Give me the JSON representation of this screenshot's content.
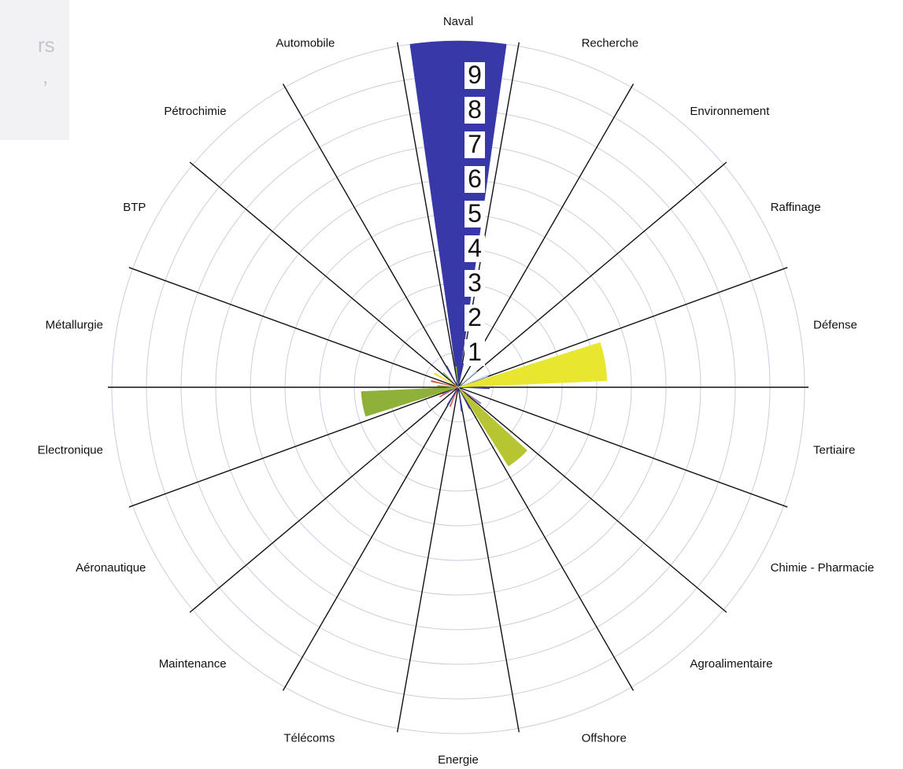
{
  "chart_data": {
    "type": "polar-bar",
    "title": "",
    "categories": [
      "Naval",
      "Recherche",
      "Environnement",
      "Raffinage",
      "Défense",
      "Tertiaire",
      "Chimie - Pharmacie",
      "Agroalimentaire",
      "Offshore",
      "Energie",
      "Télécoms",
      "Maintenance",
      "Aéronautique",
      "Electronique",
      "Métallurgie",
      "BTP",
      "Pétrochimie",
      "Automobile"
    ],
    "rings": [
      1,
      2,
      3,
      4,
      5,
      6,
      7,
      8,
      9,
      10
    ],
    "tick_labels": [
      "1",
      "2",
      "3",
      "4",
      "5",
      "6",
      "7",
      "8",
      "9"
    ],
    "grid": true,
    "series": [
      {
        "name": "",
        "color": "#3838a8",
        "values": [
          10,
          0.7,
          0,
          0,
          0,
          0.9,
          0,
          0,
          0.7,
          0.7,
          0,
          0.6,
          0,
          0,
          0,
          0,
          0,
          0.7
        ]
      },
      {
        "name": "",
        "color": "#8fb13a",
        "values": [
          0.6,
          0,
          0,
          0,
          0,
          0,
          0,
          0,
          0,
          0,
          0,
          0,
          0,
          2.8,
          0.6,
          0,
          0.6,
          0
        ]
      },
      {
        "name": "",
        "color": "#b7c533",
        "values": [
          0,
          0,
          0,
          0,
          0,
          0,
          0,
          2.7,
          0,
          0,
          0,
          0,
          0,
          0,
          0,
          0,
          0,
          0
        ]
      },
      {
        "name": "",
        "color": "#e8e62f",
        "values": [
          0,
          0,
          0,
          0,
          4.3,
          0,
          0,
          0,
          0,
          0,
          0,
          0,
          0,
          0,
          0,
          0.8,
          0,
          0
        ]
      },
      {
        "name": "",
        "color": "#d9534a",
        "values": [
          0,
          0,
          0,
          0,
          0,
          0,
          0,
          0,
          0,
          0,
          0.6,
          0,
          0.6,
          0,
          0.8,
          0,
          0,
          0
        ]
      },
      {
        "name": "",
        "color": "#a070c0",
        "values": [
          0,
          0,
          0,
          0,
          0,
          0,
          0.8,
          0,
          0,
          0,
          0,
          0,
          0.5,
          0,
          0,
          0,
          0,
          0
        ]
      },
      {
        "name": "",
        "color": "#c6dcec",
        "values": [
          0,
          0,
          0.7,
          0.9,
          0,
          0,
          0,
          0,
          0,
          0,
          0,
          0,
          0,
          0,
          0,
          0,
          0,
          0
        ]
      }
    ]
  },
  "corner_fragment": [
    "rs",
    ","
  ]
}
